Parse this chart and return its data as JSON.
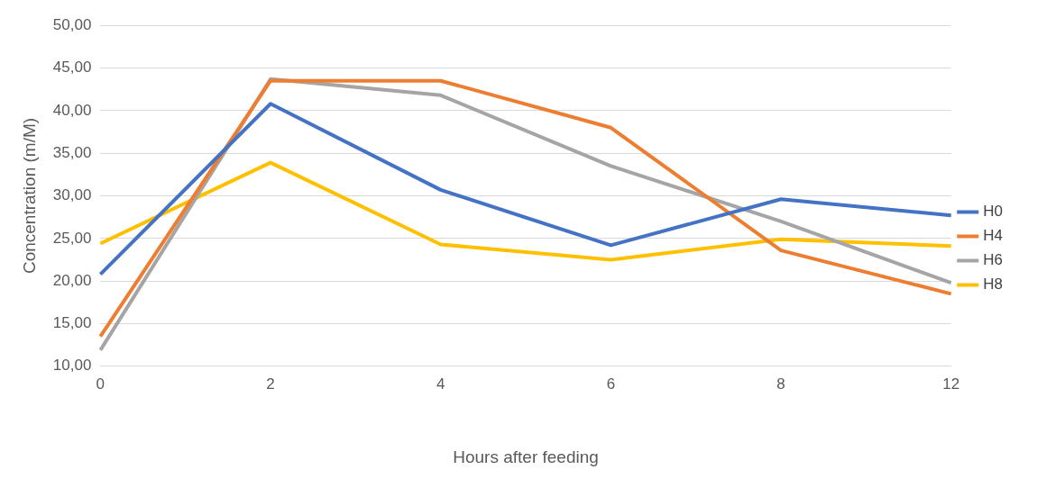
{
  "chart_data": {
    "type": "line",
    "xlabel": "Hours after feeding",
    "ylabel": "Concentration (m/M)",
    "categories": [
      "0",
      "2",
      "4",
      "6",
      "8",
      "12"
    ],
    "series": [
      {
        "name": "H0",
        "color": "#4472c4",
        "values": [
          20.8,
          40.8,
          30.7,
          24.2,
          29.6,
          27.7
        ]
      },
      {
        "name": "H4",
        "color": "#ed7d31",
        "values": [
          13.5,
          43.5,
          43.5,
          38.0,
          23.6,
          18.5
        ]
      },
      {
        "name": "H6",
        "color": "#a5a5a5",
        "values": [
          11.9,
          43.7,
          41.8,
          33.5,
          27.0,
          19.8
        ]
      },
      {
        "name": "H8",
        "color": "#ffc000",
        "values": [
          24.4,
          33.9,
          24.3,
          22.5,
          24.9,
          24.1
        ]
      }
    ],
    "ylim": [
      10,
      50
    ],
    "yticks": [
      {
        "value": 10,
        "label": "10,00"
      },
      {
        "value": 15,
        "label": "15,00"
      },
      {
        "value": 20,
        "label": "20,00"
      },
      {
        "value": 25,
        "label": "25,00"
      },
      {
        "value": 30,
        "label": "30,00"
      },
      {
        "value": 35,
        "label": "35,00"
      },
      {
        "value": 40,
        "label": "40,00"
      },
      {
        "value": 45,
        "label": "45,00"
      },
      {
        "value": 50,
        "label": "50,00"
      }
    ],
    "grid": "y",
    "legend": "right"
  }
}
